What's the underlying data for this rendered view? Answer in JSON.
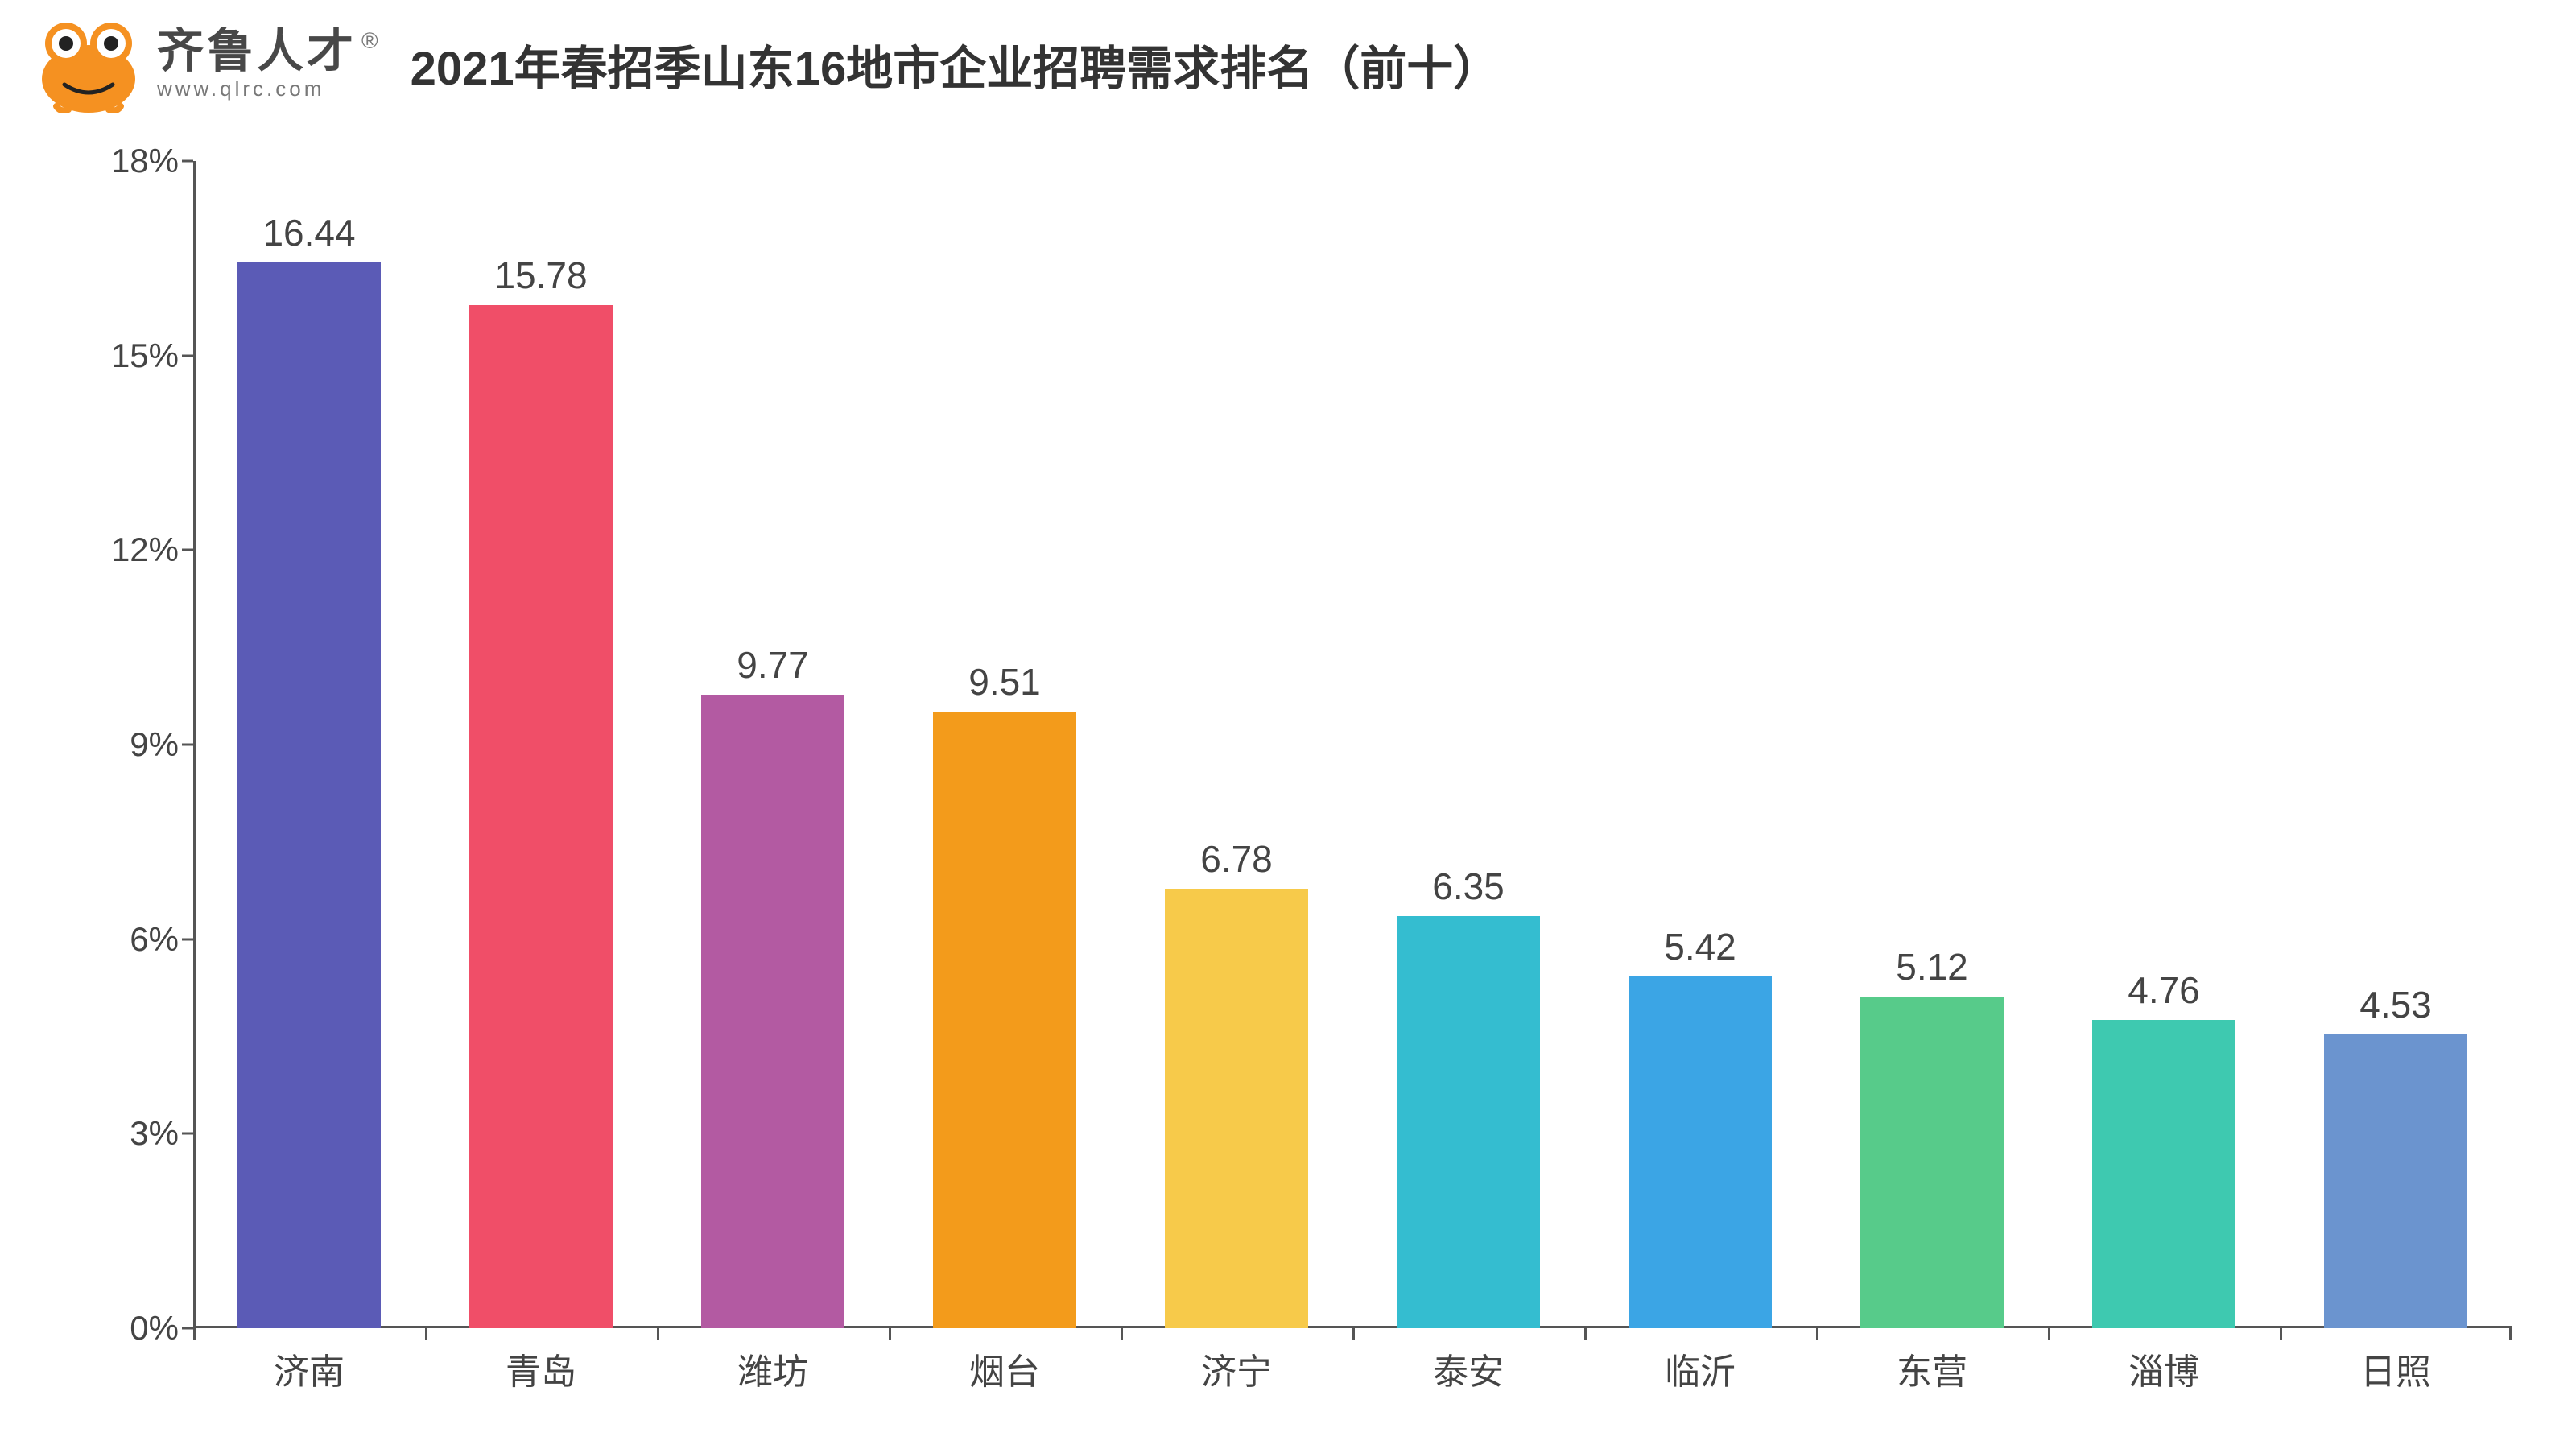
{
  "logo": {
    "cn_text": "齐鲁人才",
    "url_text": "www.qlrc.com",
    "trademark": "®",
    "frog_color": "#f59121",
    "frog_eye_color": "#ffffff",
    "frog_pupil_color": "#222222"
  },
  "title": {
    "text": "2021年春招季山东16地市企业招聘需求排名（前十）",
    "fontsize": 58,
    "color": "#333333"
  },
  "chart": {
    "type": "bar",
    "categories": [
      "济南",
      "青岛",
      "潍坊",
      "烟台",
      "济宁",
      "泰安",
      "临沂",
      "东营",
      "淄博",
      "日照"
    ],
    "values": [
      16.44,
      15.78,
      9.77,
      9.51,
      6.78,
      6.35,
      5.42,
      5.12,
      4.76,
      4.53
    ],
    "bar_colors": [
      "#5b5bb6",
      "#f04e68",
      "#b35aa2",
      "#f39b1b",
      "#f7ca4a",
      "#34bdd0",
      "#3ba5e5",
      "#57cb8a",
      "#3ec9b0",
      "#6b94cf"
    ],
    "value_suffix": "",
    "ylim": [
      0,
      18
    ],
    "ytick_step": 3,
    "y_tick_labels": [
      "0%",
      "3%",
      "6%",
      "9%",
      "12%",
      "15%",
      "18%"
    ],
    "tick_fontsize": 42,
    "value_fontsize": 46,
    "xlabel_fontsize": 44,
    "axis_color": "#555555",
    "background_color": "#ffffff",
    "bar_width": 0.62
  }
}
